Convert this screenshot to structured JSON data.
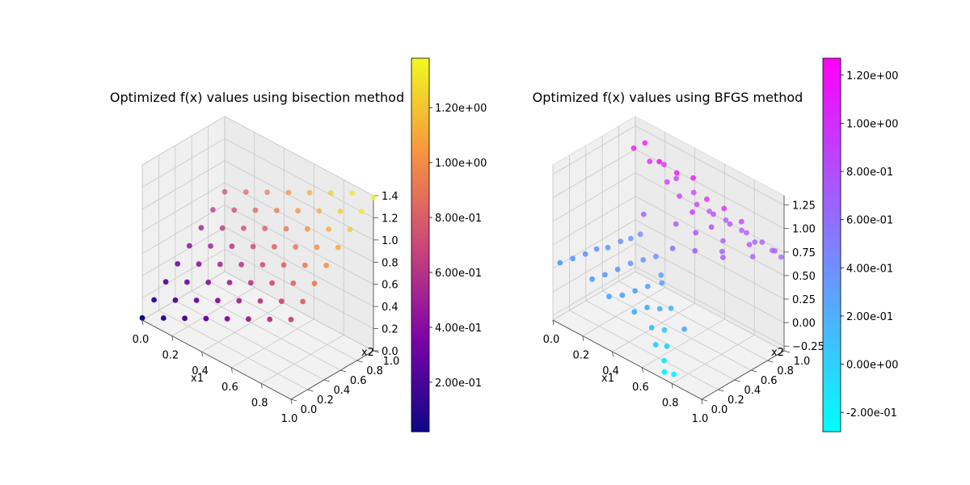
{
  "chart_data": [
    {
      "type": "scatter",
      "title": "Optimized f(x) values using bisection method",
      "xlabel": "x1",
      "ylabel": "x2",
      "zlabel": "",
      "colormap": "plasma",
      "x_ticks": [
        "0.0",
        "0.2",
        "0.4",
        "0.6",
        "0.8",
        "1.0"
      ],
      "y_ticks": [
        "0.0",
        "0.2",
        "0.4",
        "0.6",
        "0.8",
        "1.0"
      ],
      "z_ticks": [
        "0.0",
        "0.2",
        "0.4",
        "0.6",
        "0.8",
        "1.0",
        "1.2",
        "1.4"
      ],
      "xlim": [
        0,
        1
      ],
      "ylim": [
        0,
        1
      ],
      "zlim": [
        0,
        1.4
      ],
      "color_range": [
        0.02,
        1.38
      ],
      "colorbar_ticks": [
        {
          "value": 0.2,
          "label": "2.00e-01"
        },
        {
          "value": 0.4,
          "label": "4.00e-01"
        },
        {
          "value": 0.6,
          "label": "6.00e-01"
        },
        {
          "value": 0.8,
          "label": "8.00e-01"
        },
        {
          "value": 1.0,
          "label": "1.00e+00"
        },
        {
          "value": 1.2,
          "label": "1.20e+00"
        }
      ],
      "grid": true,
      "points_note": "8x8 grid of x1,x2 in [0,1]; f approx 0.7*(x1+x2)",
      "points": [
        [
          0,
          0,
          0.02
        ],
        [
          0,
          0.1429,
          0.12
        ],
        [
          0,
          0.2857,
          0.22
        ],
        [
          0,
          0.4286,
          0.32
        ],
        [
          0,
          0.5714,
          0.42
        ],
        [
          0,
          0.7143,
          0.52
        ],
        [
          0,
          0.8571,
          0.62
        ],
        [
          0,
          1,
          0.72
        ],
        [
          0.1429,
          0,
          0.12
        ],
        [
          0.1429,
          0.1429,
          0.22
        ],
        [
          0.1429,
          0.2857,
          0.32
        ],
        [
          0.1429,
          0.4286,
          0.42
        ],
        [
          0.1429,
          0.5714,
          0.52
        ],
        [
          0.1429,
          0.7143,
          0.62
        ],
        [
          0.1429,
          0.8571,
          0.72
        ],
        [
          0.1429,
          1,
          0.82
        ],
        [
          0.2857,
          0,
          0.22
        ],
        [
          0.2857,
          0.1429,
          0.32
        ],
        [
          0.2857,
          0.2857,
          0.42
        ],
        [
          0.2857,
          0.4286,
          0.52
        ],
        [
          0.2857,
          0.5714,
          0.62
        ],
        [
          0.2857,
          0.7143,
          0.72
        ],
        [
          0.2857,
          0.8571,
          0.82
        ],
        [
          0.2857,
          1,
          0.92
        ],
        [
          0.4286,
          0,
          0.32
        ],
        [
          0.4286,
          0.1429,
          0.42
        ],
        [
          0.4286,
          0.2857,
          0.52
        ],
        [
          0.4286,
          0.4286,
          0.62
        ],
        [
          0.4286,
          0.5714,
          0.72
        ],
        [
          0.4286,
          0.7143,
          0.82
        ],
        [
          0.4286,
          0.8571,
          0.92
        ],
        [
          0.4286,
          1,
          1.02
        ],
        [
          0.5714,
          0,
          0.42
        ],
        [
          0.5714,
          0.1429,
          0.52
        ],
        [
          0.5714,
          0.2857,
          0.62
        ],
        [
          0.5714,
          0.4286,
          0.72
        ],
        [
          0.5714,
          0.5714,
          0.82
        ],
        [
          0.5714,
          0.7143,
          0.92
        ],
        [
          0.5714,
          0.8571,
          1.02
        ],
        [
          0.5714,
          1,
          1.12
        ],
        [
          0.7143,
          0,
          0.52
        ],
        [
          0.7143,
          0.1429,
          0.62
        ],
        [
          0.7143,
          0.2857,
          0.72
        ],
        [
          0.7143,
          0.4286,
          0.82
        ],
        [
          0.7143,
          0.5714,
          0.92
        ],
        [
          0.7143,
          0.7143,
          1.02
        ],
        [
          0.7143,
          0.8571,
          1.12
        ],
        [
          0.7143,
          1,
          1.22
        ],
        [
          0.8571,
          0,
          0.62
        ],
        [
          0.8571,
          0.1429,
          0.72
        ],
        [
          0.8571,
          0.2857,
          0.82
        ],
        [
          0.8571,
          0.4286,
          0.92
        ],
        [
          0.8571,
          0.5714,
          1.02
        ],
        [
          0.8571,
          0.7143,
          1.12
        ],
        [
          0.8571,
          0.8571,
          1.22
        ],
        [
          0.8571,
          1,
          1.32
        ],
        [
          1,
          0,
          0.72
        ],
        [
          1,
          0.1429,
          0.82
        ],
        [
          1,
          0.2857,
          0.92
        ],
        [
          1,
          0.4286,
          1.02
        ],
        [
          1,
          0.5714,
          1.12
        ],
        [
          1,
          0.7143,
          1.22
        ],
        [
          1,
          0.8571,
          1.32
        ],
        [
          1,
          1,
          1.38
        ]
      ]
    },
    {
      "type": "scatter",
      "title": "Optimized f(x) values using BFGS method",
      "xlabel": "x1",
      "ylabel": "x2",
      "zlabel": "",
      "colormap": "cool",
      "x_ticks": [
        "0.0",
        "0.2",
        "0.4",
        "0.6",
        "0.8",
        "1.0"
      ],
      "y_ticks": [
        "0.0",
        "0.2",
        "0.4",
        "0.6",
        "0.8",
        "1.0"
      ],
      "z_ticks": [
        "−0.25",
        "0.00",
        "0.25",
        "0.50",
        "0.75",
        "1.00",
        "1.25"
      ],
      "xlim": [
        0,
        1
      ],
      "ylim": [
        0,
        1
      ],
      "zlim": [
        -0.3,
        1.35
      ],
      "color_range": [
        -0.28,
        1.27
      ],
      "colorbar_ticks": [
        {
          "value": -0.2,
          "label": "-2.00e-01"
        },
        {
          "value": 0.0,
          "label": "0.00e+00"
        },
        {
          "value": 0.2,
          "label": "2.00e-01"
        },
        {
          "value": 0.4,
          "label": "4.00e-01"
        },
        {
          "value": 0.6,
          "label": "6.00e-01"
        },
        {
          "value": 0.8,
          "label": "8.00e-01"
        },
        {
          "value": 1.0,
          "label": "1.00e+00"
        },
        {
          "value": 1.2,
          "label": "1.20e+00"
        }
      ],
      "grid": true,
      "points_note": "scattered BFGS results; two clusters (low ~0.2-0.4, high ~0.7-1.25)",
      "points": [
        [
          0.02,
          0.05,
          0.3
        ],
        [
          0.05,
          0.15,
          0.32
        ],
        [
          0.08,
          0.25,
          0.34
        ],
        [
          0.1,
          0.35,
          0.36
        ],
        [
          0.12,
          0.45,
          0.34
        ],
        [
          0.15,
          0.55,
          0.38
        ],
        [
          0.18,
          0.62,
          0.4
        ],
        [
          0.2,
          0.7,
          0.42
        ],
        [
          0.22,
          0.08,
          0.28
        ],
        [
          0.25,
          0.18,
          0.3
        ],
        [
          0.28,
          0.28,
          0.33
        ],
        [
          0.3,
          0.4,
          0.35
        ],
        [
          0.33,
          0.5,
          0.36
        ],
        [
          0.36,
          0.6,
          0.37
        ],
        [
          0.4,
          0.12,
          0.24
        ],
        [
          0.43,
          0.22,
          0.26
        ],
        [
          0.46,
          0.32,
          0.28
        ],
        [
          0.5,
          0.42,
          0.3
        ],
        [
          0.52,
          0.05,
          0.2
        ],
        [
          0.55,
          0.15,
          0.22
        ],
        [
          0.58,
          0.25,
          0.18
        ],
        [
          0.6,
          0.35,
          0.15
        ],
        [
          0.62,
          0.08,
          0.1
        ],
        [
          0.65,
          0.18,
          0.05
        ],
        [
          0.68,
          0.02,
          0.0
        ],
        [
          0.7,
          0.12,
          -0.05
        ],
        [
          0.72,
          0.05,
          -0.15
        ],
        [
          0.75,
          0.0,
          -0.22
        ],
        [
          0.78,
          0.06,
          -0.25
        ],
        [
          0.8,
          0.15,
          0.2
        ],
        [
          0.35,
          0.05,
          0.22
        ],
        [
          0.45,
          0.5,
          0.3
        ],
        [
          0.1,
          0.8,
          1.2
        ],
        [
          0.12,
          0.9,
          1.22
        ],
        [
          0.18,
          0.85,
          1.1
        ],
        [
          0.22,
          0.95,
          1.05
        ],
        [
          0.28,
          0.88,
          0.95
        ],
        [
          0.32,
          0.92,
          1.0
        ],
        [
          0.38,
          0.85,
          0.9
        ],
        [
          0.42,
          0.95,
          0.92
        ],
        [
          0.48,
          0.88,
          0.88
        ],
        [
          0.52,
          0.96,
          0.8
        ],
        [
          0.58,
          0.9,
          0.85
        ],
        [
          0.62,
          0.98,
          0.78
        ],
        [
          0.68,
          0.92,
          0.82
        ],
        [
          0.72,
          0.99,
          0.75
        ],
        [
          0.78,
          0.94,
          0.8
        ],
        [
          0.82,
          0.97,
          0.72
        ],
        [
          0.88,
          0.95,
          0.78
        ],
        [
          0.92,
          1.0,
          0.7
        ],
        [
          0.96,
          0.96,
          0.75
        ],
        [
          0.98,
          1.0,
          0.68
        ],
        [
          0.3,
          0.75,
          1.25
        ],
        [
          0.4,
          0.78,
          1.2
        ],
        [
          0.5,
          0.8,
          1.22
        ],
        [
          0.55,
          0.7,
          0.95
        ],
        [
          0.6,
          0.65,
          0.8
        ],
        [
          0.65,
          0.75,
          0.85
        ],
        [
          0.7,
          0.8,
          0.72
        ],
        [
          0.75,
          0.7,
          0.7
        ],
        [
          0.85,
          0.85,
          0.78
        ],
        [
          0.9,
          0.8,
          0.72
        ],
        [
          0.25,
          0.65,
          0.7
        ],
        [
          0.45,
          0.68,
          0.75
        ],
        [
          0.65,
          0.55,
          0.7
        ],
        [
          0.8,
          0.62,
          0.72
        ],
        [
          0.5,
          0.55,
          0.6
        ],
        [
          0.58,
          0.82,
          1.05
        ],
        [
          0.68,
          0.85,
          1.02
        ],
        [
          0.78,
          0.88,
          0.95
        ]
      ]
    }
  ]
}
